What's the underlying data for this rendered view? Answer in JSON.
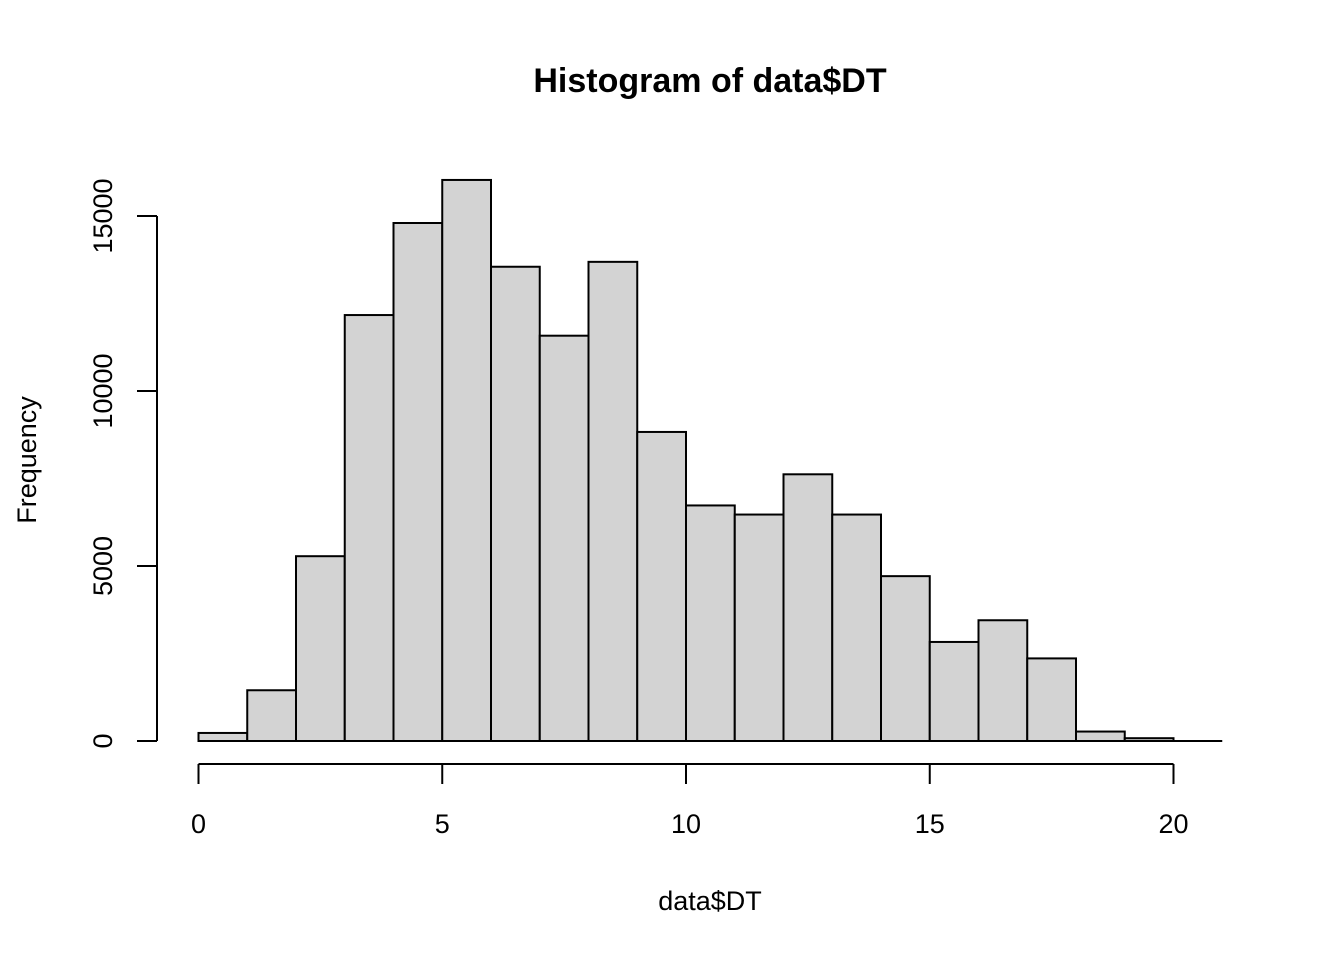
{
  "chart_data": {
    "type": "bar",
    "title": "Histogram of data$DT",
    "xlabel": "data$DT",
    "ylabel": "Frequency",
    "bin_width": 1,
    "bins": [
      {
        "start": 0,
        "end": 1,
        "count": 230
      },
      {
        "start": 1,
        "end": 2,
        "count": 1450
      },
      {
        "start": 2,
        "end": 3,
        "count": 5280
      },
      {
        "start": 3,
        "end": 4,
        "count": 12170
      },
      {
        "start": 4,
        "end": 5,
        "count": 14800
      },
      {
        "start": 5,
        "end": 6,
        "count": 16030
      },
      {
        "start": 6,
        "end": 7,
        "count": 13550
      },
      {
        "start": 7,
        "end": 8,
        "count": 11580
      },
      {
        "start": 8,
        "end": 9,
        "count": 13690
      },
      {
        "start": 9,
        "end": 10,
        "count": 8830
      },
      {
        "start": 10,
        "end": 11,
        "count": 6730
      },
      {
        "start": 11,
        "end": 12,
        "count": 6470
      },
      {
        "start": 12,
        "end": 13,
        "count": 7620
      },
      {
        "start": 13,
        "end": 14,
        "count": 6470
      },
      {
        "start": 14,
        "end": 15,
        "count": 4710
      },
      {
        "start": 15,
        "end": 16,
        "count": 2830
      },
      {
        "start": 16,
        "end": 17,
        "count": 3450
      },
      {
        "start": 17,
        "end": 18,
        "count": 2360
      },
      {
        "start": 18,
        "end": 19,
        "count": 270
      },
      {
        "start": 19,
        "end": 20,
        "count": 80
      }
    ],
    "xlim": [
      0,
      21
    ],
    "ylim": [
      0,
      16030
    ],
    "x_ticks": [
      0,
      5,
      10,
      15,
      20
    ],
    "y_ticks": [
      0,
      5000,
      10000,
      15000
    ],
    "bar_color": "#d3d3d3",
    "grid": false
  }
}
